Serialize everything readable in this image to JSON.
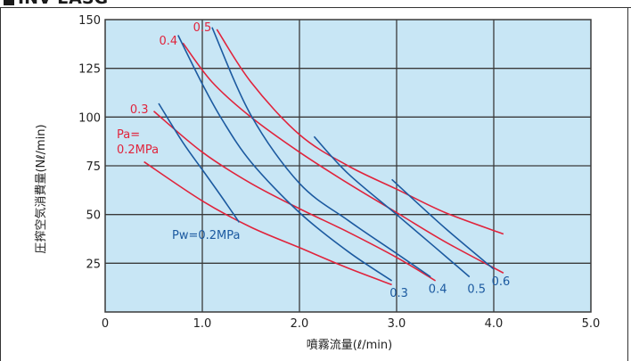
{
  "header": {
    "title": "INV-EASG"
  },
  "chart_data": {
    "type": "line",
    "ylabel": "圧搾空気消費量(Nℓ/min)",
    "xlabel": "噴霧流量(ℓ/min)",
    "xlim": [
      0,
      5
    ],
    "ylim": [
      0,
      150
    ],
    "xticks": [
      0,
      1.0,
      2.0,
      3.0,
      4.0,
      5.0
    ],
    "xtick_labels": [
      "0",
      "1.0",
      "2.0",
      "3.0",
      "4.0",
      "5.0"
    ],
    "yticks": [
      25,
      50,
      75,
      100,
      125,
      150
    ],
    "ytick_labels": [
      "25",
      "50",
      "75",
      "100",
      "125",
      "150"
    ],
    "grid": true,
    "background_color": "#c8e6f5",
    "colors": {
      "pa": "#e0243c",
      "pw": "#1c5aa0",
      "grid": "#3a3a3a"
    },
    "pa_series_title": "Pa=\n0.2MPa",
    "pw_series_title": "Pw=0.2MPa",
    "series": [
      {
        "family": "pa",
        "name": "Pa=0.2MPa",
        "label": "Pa=0.2MPa",
        "label_text": "",
        "x": [
          0.4,
          1.0,
          1.5,
          2.0,
          2.5,
          2.95
        ],
        "y": [
          77,
          57,
          43.5,
          33,
          22.5,
          14
        ]
      },
      {
        "family": "pa",
        "name": "0.3",
        "label_text": "0.3",
        "x": [
          0.5,
          1.0,
          1.5,
          2.0,
          2.5,
          3.0,
          3.4
        ],
        "y": [
          103,
          82,
          66,
          53,
          41,
          28,
          16
        ]
      },
      {
        "family": "pa",
        "name": "0.4",
        "label_text": "0.4",
        "x": [
          0.8,
          1.1,
          1.5,
          2.0,
          2.5,
          3.0,
          3.5,
          4.1
        ],
        "y": [
          138,
          118,
          100,
          82,
          66,
          51,
          36,
          20
        ]
      },
      {
        "family": "pa",
        "name": "0.5",
        "label_text": "0.5",
        "x": [
          1.15,
          1.5,
          2.0,
          2.5,
          3.0,
          3.5,
          4.1
        ],
        "y": [
          145,
          118,
          91,
          75,
          63,
          51,
          40
        ]
      },
      {
        "family": "pw",
        "name": "Pw=0.2MPa",
        "label_text": "",
        "x": [
          0.55,
          0.8,
          1.0,
          1.2,
          1.38
        ],
        "y": [
          107,
          87,
          73,
          59,
          46
        ]
      },
      {
        "family": "pw",
        "name": "0.3",
        "label_text": "0.3",
        "x": [
          0.75,
          1.0,
          1.2,
          1.5,
          2.0,
          2.5,
          2.95
        ],
        "y": [
          142,
          117,
          99,
          77,
          51,
          31,
          16
        ]
      },
      {
        "family": "pw",
        "name": "0.4",
        "label_text": "0.4",
        "x": [
          1.1,
          1.5,
          2.0,
          2.5,
          3.0,
          3.35
        ],
        "y": [
          146,
          101,
          66,
          47,
          30,
          18
        ]
      },
      {
        "family": "pw",
        "name": "0.5",
        "label_text": "0.5",
        "x": [
          2.15,
          2.5,
          3.0,
          3.4,
          3.75
        ],
        "y": [
          90,
          71,
          50,
          33,
          18
        ]
      },
      {
        "family": "pw",
        "name": "0.6",
        "label_text": "0.6",
        "x": [
          2.95,
          3.5,
          4.0
        ],
        "y": [
          68,
          43,
          22
        ]
      }
    ]
  }
}
